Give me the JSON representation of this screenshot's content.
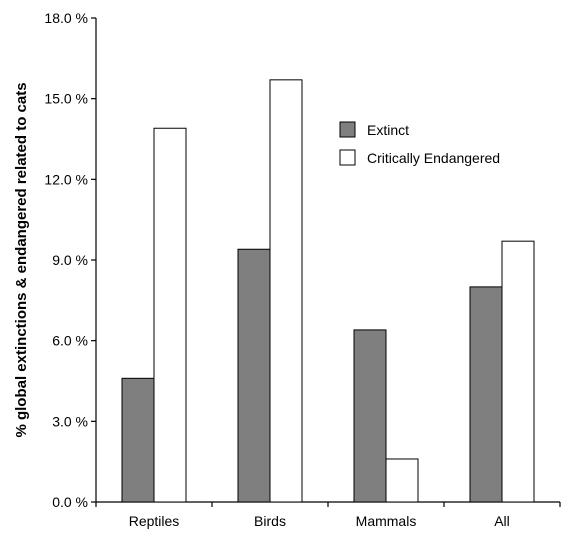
{
  "chart_data": {
    "type": "bar",
    "categories": [
      "Reptiles",
      "Birds",
      "Mammals",
      "All"
    ],
    "series": [
      {
        "name": "Extinct",
        "values": [
          4.6,
          9.4,
          6.4,
          8.0
        ],
        "color": "#7f7f7f"
      },
      {
        "name": "Critically Endangered",
        "values": [
          13.9,
          15.7,
          1.6,
          9.7
        ],
        "color": "#ffffff"
      }
    ],
    "ylabel": "% global extinctions & endangered related to cats",
    "xlabel": "",
    "ylim": [
      0,
      18
    ],
    "yticks": [
      0,
      3,
      6,
      9,
      12,
      15,
      18
    ],
    "ytick_labels": [
      "0.0 %",
      "3.0 %",
      "6.0 %",
      "9.0 %",
      "12.0 %",
      "15.0 %",
      "18.0 %"
    ],
    "grid": false,
    "legend_position": "top-right"
  }
}
